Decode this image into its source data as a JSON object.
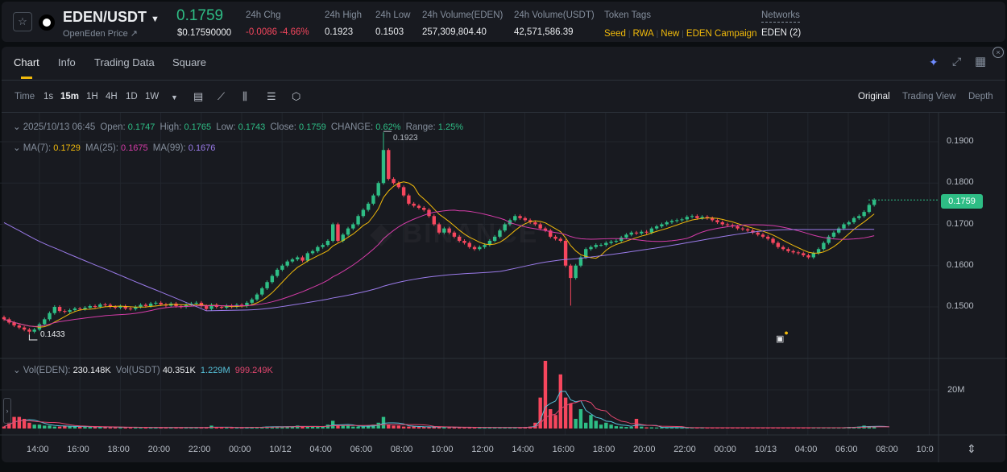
{
  "header": {
    "pair": "EDEN/USDT",
    "subtitle": "OpenEden Price ↗",
    "price": "0.1759",
    "price_usd": "$0.17590000",
    "stats": [
      {
        "label": "24h Chg",
        "value": "-0.0086 -4.66%",
        "color": "#f6465d"
      },
      {
        "label": "24h High",
        "value": "0.1923"
      },
      {
        "label": "24h Low",
        "value": "0.1503"
      },
      {
        "label": "24h Volume(EDEN)",
        "value": "257,309,804.40"
      },
      {
        "label": "24h Volume(USDT)",
        "value": "42,571,586.39"
      }
    ],
    "tags_label": "Token Tags",
    "tags": [
      "Seed",
      "RWA",
      "New",
      "EDEN Campaign"
    ],
    "networks_label": "Networks",
    "networks_value": "EDEN (2)"
  },
  "tabs": [
    "Chart",
    "Info",
    "Trading Data",
    "Square"
  ],
  "toolbar": {
    "intervals": [
      "Time",
      "1s",
      "15m",
      "1H",
      "4H",
      "1D",
      "1W"
    ],
    "active": "15m",
    "views": [
      "Original",
      "Trading View",
      "Depth"
    ]
  },
  "legend": {
    "date": "2025/10/13 06:45",
    "open_label": "Open:",
    "open": "0.1747",
    "high_label": "High:",
    "high": "0.1765",
    "low_label": "Low:",
    "low": "0.1743",
    "close_label": "Close:",
    "close": "0.1759",
    "change_label": "CHANGE:",
    "change": "0.62%",
    "range_label": "Range:",
    "range": "1.25%",
    "ma7_label": "MA(7):",
    "ma7": "0.1729",
    "ma25_label": "MA(25):",
    "ma25": "0.1675",
    "ma99_label": "MA(99):",
    "ma99": "0.1676"
  },
  "vol_legend": {
    "eden_label": "Vol(EDEN):",
    "eden": "230.148K",
    "usdt_label": "Vol(USDT)",
    "usdt": "40.351K",
    "ma5": "1.229M",
    "ma10": "999.249K"
  },
  "colors": {
    "up": "#2ebd85",
    "down": "#f6465d",
    "ma7": "#f0b90b",
    "ma25": "#d63ca9",
    "ma99": "#9b7bea",
    "vol_ma5": "#56c1d9",
    "vol_ma10": "#e0466e"
  },
  "chart_data": {
    "type": "candlestick",
    "ylim": [
      0.143,
      0.193
    ],
    "y_ticks": [
      "0.1900",
      "0.1800",
      "0.1700",
      "0.1600",
      "0.1500"
    ],
    "last_price": "0.1759",
    "high_marker": "0.1923",
    "low_marker": "0.1433",
    "vol_tick": "20M",
    "x_ticks": [
      "14:00",
      "16:00",
      "18:00",
      "20:00",
      "22:00",
      "00:00",
      "10/12",
      "04:00",
      "06:00",
      "08:00",
      "10:00",
      "12:00",
      "14:00",
      "16:00",
      "18:00",
      "20:00",
      "22:00",
      "00:00",
      "10/13",
      "04:00",
      "06:00",
      "08:00",
      "10:0"
    ],
    "close": [
      0.147,
      0.1462,
      0.1455,
      0.145,
      0.1445,
      0.144,
      0.1445,
      0.1458,
      0.147,
      0.1485,
      0.15,
      0.149,
      0.1488,
      0.1492,
      0.1496,
      0.1495,
      0.1498,
      0.1502,
      0.15,
      0.1506,
      0.1505,
      0.15,
      0.1498,
      0.1502,
      0.1496,
      0.1495,
      0.15,
      0.1505,
      0.1502,
      0.1508,
      0.151,
      0.1506,
      0.1503,
      0.1508,
      0.1502,
      0.15,
      0.1505,
      0.1508,
      0.151,
      0.1502,
      0.1495,
      0.1505,
      0.15,
      0.1498,
      0.1503,
      0.15,
      0.1505,
      0.1502,
      0.151,
      0.1518,
      0.153,
      0.1545,
      0.156,
      0.1575,
      0.159,
      0.16,
      0.161,
      0.1615,
      0.162,
      0.1612,
      0.163,
      0.1635,
      0.1645,
      0.165,
      0.166,
      0.17,
      0.166,
      0.1675,
      0.169,
      0.17,
      0.172,
      0.1735,
      0.175,
      0.177,
      0.18,
      0.188,
      0.181,
      0.18,
      0.179,
      0.177,
      0.175,
      0.1745,
      0.174,
      0.1735,
      0.172,
      0.17,
      0.168,
      0.169,
      0.168,
      0.167,
      0.166,
      0.1655,
      0.1645,
      0.164,
      0.1645,
      0.165,
      0.166,
      0.167,
      0.1685,
      0.17,
      0.171,
      0.172,
      0.1715,
      0.171,
      0.1705,
      0.17,
      0.169,
      0.1685,
      0.167,
      0.1665,
      0.166,
      0.16,
      0.157,
      0.16,
      0.162,
      0.164,
      0.1645,
      0.165,
      0.165,
      0.1655,
      0.1658,
      0.166,
      0.1668,
      0.1675,
      0.168,
      0.1678,
      0.1682,
      0.168,
      0.169,
      0.1695,
      0.17,
      0.1705,
      0.1708,
      0.171,
      0.1712,
      0.1718,
      0.172,
      0.1715,
      0.1718,
      0.1715,
      0.171,
      0.1705,
      0.17,
      0.1698,
      0.1695,
      0.169,
      0.1688,
      0.1685,
      0.168,
      0.1675,
      0.167,
      0.1665,
      0.1655,
      0.1645,
      0.164,
      0.1635,
      0.1632,
      0.163,
      0.1625,
      0.162,
      0.163,
      0.164,
      0.1655,
      0.167,
      0.168,
      0.169,
      0.17,
      0.1705,
      0.1715,
      0.172,
      0.173,
      0.1747,
      0.1759
    ],
    "volume_m": [
      1,
      3,
      6,
      6,
      5,
      3,
      2,
      2,
      1.5,
      1.5,
      1,
      1,
      1.5,
      1,
      1,
      1,
      0.8,
      0.8,
      0.8,
      0.8,
      0.8,
      0.6,
      0.6,
      0.6,
      0.6,
      0.6,
      0.6,
      0.5,
      0.5,
      0.5,
      0.5,
      0.5,
      0.5,
      0.5,
      0.5,
      0.5,
      0.5,
      0.5,
      0.5,
      0.5,
      0.5,
      1.5,
      0.5,
      0.5,
      0.5,
      0.4,
      0.5,
      0.4,
      0.5,
      0.8,
      0.8,
      0.8,
      1,
      1,
      1,
      1,
      1,
      1,
      1.5,
      1,
      1,
      1,
      1,
      1,
      2,
      4,
      1.5,
      1.5,
      1.5,
      1,
      1,
      1,
      1.5,
      2,
      3,
      6,
      2,
      1.5,
      1.5,
      1,
      1,
      1,
      0.8,
      0.8,
      0.8,
      0.8,
      0.8,
      0.6,
      0.6,
      0.6,
      0.6,
      0.6,
      0.5,
      0.5,
      0.5,
      0.5,
      0.5,
      0.5,
      0.5,
      0.5,
      0.5,
      0.5,
      0.5,
      0.8,
      1,
      3,
      16,
      35,
      10,
      7,
      28,
      16,
      13,
      5,
      10,
      3,
      7,
      4,
      2,
      3,
      2,
      1.2,
      1,
      0.8,
      0.8,
      5,
      1,
      0.6,
      0.6,
      0.5,
      0.5,
      0.5,
      0.5,
      0.5,
      0.4,
      0.4,
      0.4,
      0.4,
      0.4,
      0.4,
      0.4,
      0.4,
      0.4,
      0.4,
      0.4,
      0.4,
      0.4,
      0.4,
      0.4,
      0.4,
      0.4,
      0.4,
      0.4,
      0.4,
      0.4,
      0.4,
      0.4,
      0.4,
      0.4,
      0.4,
      0.4,
      0.4,
      0.4,
      0.4,
      0.5,
      0.5,
      0.5,
      0.8,
      0.8,
      1,
      1.5,
      1.2,
      1,
      1,
      0.8,
      0.5
    ]
  }
}
